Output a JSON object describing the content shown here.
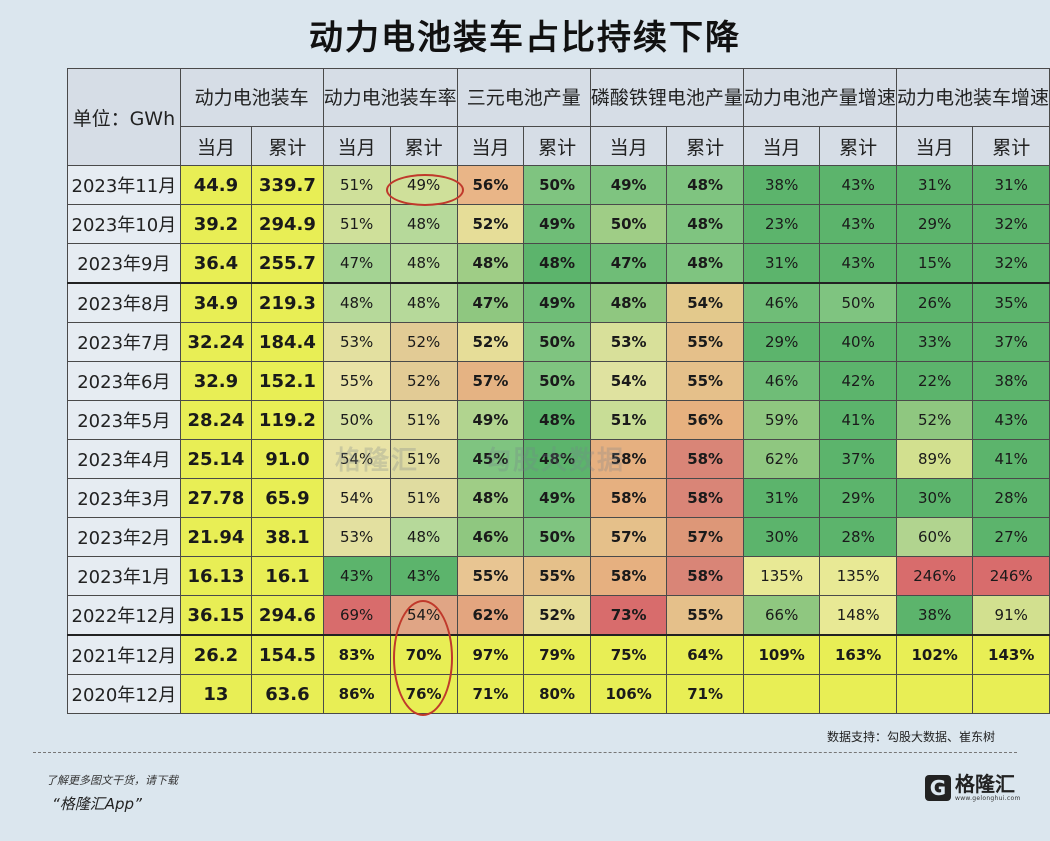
{
  "title": "动力电池装车占比持续下降",
  "unit_label": "单位：GWh",
  "groups": [
    "动力电池装车",
    "动力电池装车率",
    "三元电池产量",
    "磷酸铁锂电池产量",
    "动力电池产量增速",
    "动力电池装车增速"
  ],
  "sub_headers": [
    "当月",
    "累计",
    "当月",
    "累计",
    "当月",
    "累计",
    "当月",
    "累计",
    "当月",
    "累计",
    "当月",
    "累计"
  ],
  "source": "数据支持：勾股大数据、崔东树",
  "footer_line1": "了解更多图文干货，请下载",
  "footer_line2": "“格隆汇App”",
  "logo_text": "格隆汇",
  "logo_url": "www.gelonghui.com",
  "watermark_left": "格隆汇",
  "watermark_right": "勾股大数据",
  "chart_data": {
    "type": "table",
    "title": "动力电池装车占比持续下降",
    "unit": "GWh",
    "columns": [
      "动力电池装车-当月",
      "动力电池装车-累计",
      "动力电池装车率-当月",
      "动力电池装车率-累计",
      "三元电池产量-当月",
      "三元电池产量-累计",
      "磷酸铁锂电池产量-当月",
      "磷酸铁锂电池产量-累计",
      "动力电池产量增速-当月",
      "动力电池产量增速-累计",
      "动力电池装车增速-当月",
      "动力电池装车增速-累计"
    ],
    "rows": [
      {
        "month": "2023年11月",
        "values": [
          "44.9",
          "339.7",
          "51%",
          "49%",
          "56%",
          "50%",
          "49%",
          "48%",
          "38%",
          "43%",
          "31%",
          "31%"
        ],
        "colors": [
          "#e8ee55",
          "#e8ee55",
          "#cfe09a",
          "#cfe09a",
          "#e9b587",
          "#7fc480",
          "#7fc480",
          "#7fc480",
          "#5cb46c",
          "#5cb46c",
          "#5cb46c",
          "#5cb46c"
        ]
      },
      {
        "month": "2023年10月",
        "values": [
          "39.2",
          "294.9",
          "51%",
          "48%",
          "52%",
          "49%",
          "50%",
          "48%",
          "23%",
          "43%",
          "29%",
          "32%"
        ],
        "colors": [
          "#e8ee55",
          "#e8ee55",
          "#cfe09a",
          "#b6d99a",
          "#e6dd98",
          "#6fbd77",
          "#9fcd86",
          "#7fc480",
          "#5cb46c",
          "#5cb46c",
          "#5cb46c",
          "#5cb46c"
        ]
      },
      {
        "month": "2023年9月",
        "values": [
          "36.4",
          "255.7",
          "47%",
          "48%",
          "48%",
          "48%",
          "47%",
          "48%",
          "31%",
          "43%",
          "15%",
          "32%"
        ],
        "colors": [
          "#e8ee55",
          "#e8ee55",
          "#a4d393",
          "#b6d99a",
          "#9fcd86",
          "#5cb46c",
          "#6fbd77",
          "#7fc480",
          "#5cb46c",
          "#5cb46c",
          "#5cb46c",
          "#5cb46c"
        ]
      },
      {
        "month": "2023年8月",
        "values": [
          "34.9",
          "219.3",
          "48%",
          "48%",
          "47%",
          "49%",
          "48%",
          "54%",
          "46%",
          "50%",
          "26%",
          "35%"
        ],
        "colors": [
          "#e8ee55",
          "#e8ee55",
          "#b6d99a",
          "#b6d99a",
          "#8fc780",
          "#6fbd77",
          "#8fc780",
          "#e3c98c",
          "#6fbd77",
          "#7fc480",
          "#5cb46c",
          "#5cb46c"
        ]
      },
      {
        "month": "2023年7月",
        "values": [
          "32.24",
          "184.4",
          "53%",
          "52%",
          "52%",
          "50%",
          "53%",
          "55%",
          "29%",
          "40%",
          "33%",
          "37%"
        ],
        "colors": [
          "#e8ee55",
          "#e8ee55",
          "#e3e0a0",
          "#e2cb95",
          "#e6dd98",
          "#7fc480",
          "#d8e09a",
          "#e5c08a",
          "#5cb46c",
          "#5cb46c",
          "#5cb46c",
          "#5cb46c"
        ]
      },
      {
        "month": "2023年6月",
        "values": [
          "32.9",
          "152.1",
          "55%",
          "52%",
          "57%",
          "50%",
          "54%",
          "55%",
          "46%",
          "42%",
          "22%",
          "38%"
        ],
        "colors": [
          "#e8ee55",
          "#e8ee55",
          "#e9e3a6",
          "#e2cb95",
          "#e5b383",
          "#7fc480",
          "#dfe2a0",
          "#e5c08a",
          "#6fbd77",
          "#5cb46c",
          "#5cb46c",
          "#5cb46c"
        ]
      },
      {
        "month": "2023年5月",
        "values": [
          "28.24",
          "119.2",
          "50%",
          "51%",
          "49%",
          "48%",
          "51%",
          "56%",
          "59%",
          "41%",
          "52%",
          "43%"
        ],
        "colors": [
          "#e8ee55",
          "#e8ee55",
          "#d8e3a3",
          "#e0dca0",
          "#b1d48f",
          "#5cb46c",
          "#c8dd96",
          "#e7b17f",
          "#8fc780",
          "#5cb46c",
          "#8fc780",
          "#5cb46c"
        ]
      },
      {
        "month": "2023年4月",
        "values": [
          "25.14",
          "91.0",
          "54%",
          "51%",
          "45%",
          "48%",
          "58%",
          "58%",
          "62%",
          "37%",
          "89%",
          "41%"
        ],
        "colors": [
          "#e8ee55",
          "#e8ee55",
          "#e9e3a6",
          "#e0dca0",
          "#7fc480",
          "#5cb46c",
          "#e6b080",
          "#d98577",
          "#8fc780",
          "#5cb46c",
          "#d2e08f",
          "#5cb46c"
        ]
      },
      {
        "month": "2023年3月",
        "values": [
          "27.78",
          "65.9",
          "54%",
          "51%",
          "48%",
          "49%",
          "58%",
          "58%",
          "31%",
          "29%",
          "30%",
          "28%"
        ],
        "colors": [
          "#e8ee55",
          "#e8ee55",
          "#e9e3a6",
          "#e0dca0",
          "#9fcd86",
          "#6fbd77",
          "#e6b080",
          "#d98577",
          "#5cb46c",
          "#5cb46c",
          "#5cb46c",
          "#5cb46c"
        ]
      },
      {
        "month": "2023年2月",
        "values": [
          "21.94",
          "38.1",
          "53%",
          "48%",
          "46%",
          "50%",
          "57%",
          "57%",
          "30%",
          "28%",
          "60%",
          "27%"
        ],
        "colors": [
          "#e8ee55",
          "#e8ee55",
          "#e3e0a0",
          "#b6d99a",
          "#8fc780",
          "#7fc480",
          "#e5c08a",
          "#dd9778",
          "#5cb46c",
          "#5cb46c",
          "#b1d48f",
          "#5cb46c"
        ]
      },
      {
        "month": "2023年1月",
        "values": [
          "16.13",
          "16.1",
          "43%",
          "43%",
          "55%",
          "55%",
          "58%",
          "58%",
          "135%",
          "135%",
          "246%",
          "246%"
        ],
        "colors": [
          "#e8ee55",
          "#e8ee55",
          "#5cb46c",
          "#5cb46c",
          "#e8c592",
          "#e5c08a",
          "#e6b080",
          "#d98577",
          "#e8e995",
          "#e8e995",
          "#d86c6c",
          "#d86c6c"
        ]
      },
      {
        "month": "2022年12月",
        "values": [
          "36.15",
          "294.6",
          "69%",
          "54%",
          "62%",
          "52%",
          "73%",
          "55%",
          "66%",
          "148%",
          "38%",
          "91%"
        ],
        "colors": [
          "#e8ee55",
          "#e8ee55",
          "#d86c6c",
          "#e0a585",
          "#e3a57f",
          "#e6dd98",
          "#d86c6c",
          "#e5c08a",
          "#8fc780",
          "#e8e995",
          "#5cb46c",
          "#d2e08f"
        ]
      },
      {
        "month": "2021年12月",
        "values": [
          "26.2",
          "154.5",
          "83%",
          "70%",
          "97%",
          "79%",
          "75%",
          "64%",
          "109%",
          "163%",
          "102%",
          "143%"
        ],
        "colors": [
          "#e8ee55",
          "#e8ee55",
          "#e8ee55",
          "#e8ee55",
          "#e8ee55",
          "#e8ee55",
          "#e8ee55",
          "#e8ee55",
          "#e8ee55",
          "#e8ee55",
          "#e8ee55",
          "#e8ee55"
        ]
      },
      {
        "month": "2020年12月",
        "values": [
          "13",
          "63.6",
          "86%",
          "76%",
          "71%",
          "80%",
          "106%",
          "71%",
          "",
          "",
          "",
          ""
        ],
        "colors": [
          "#e8ee55",
          "#e8ee55",
          "#e8ee55",
          "#e8ee55",
          "#e8ee55",
          "#e8ee55",
          "#e8ee55",
          "#e8ee55",
          "#e8ee55",
          "#e8ee55",
          "#e8ee55",
          "#e8ee55"
        ]
      }
    ]
  }
}
